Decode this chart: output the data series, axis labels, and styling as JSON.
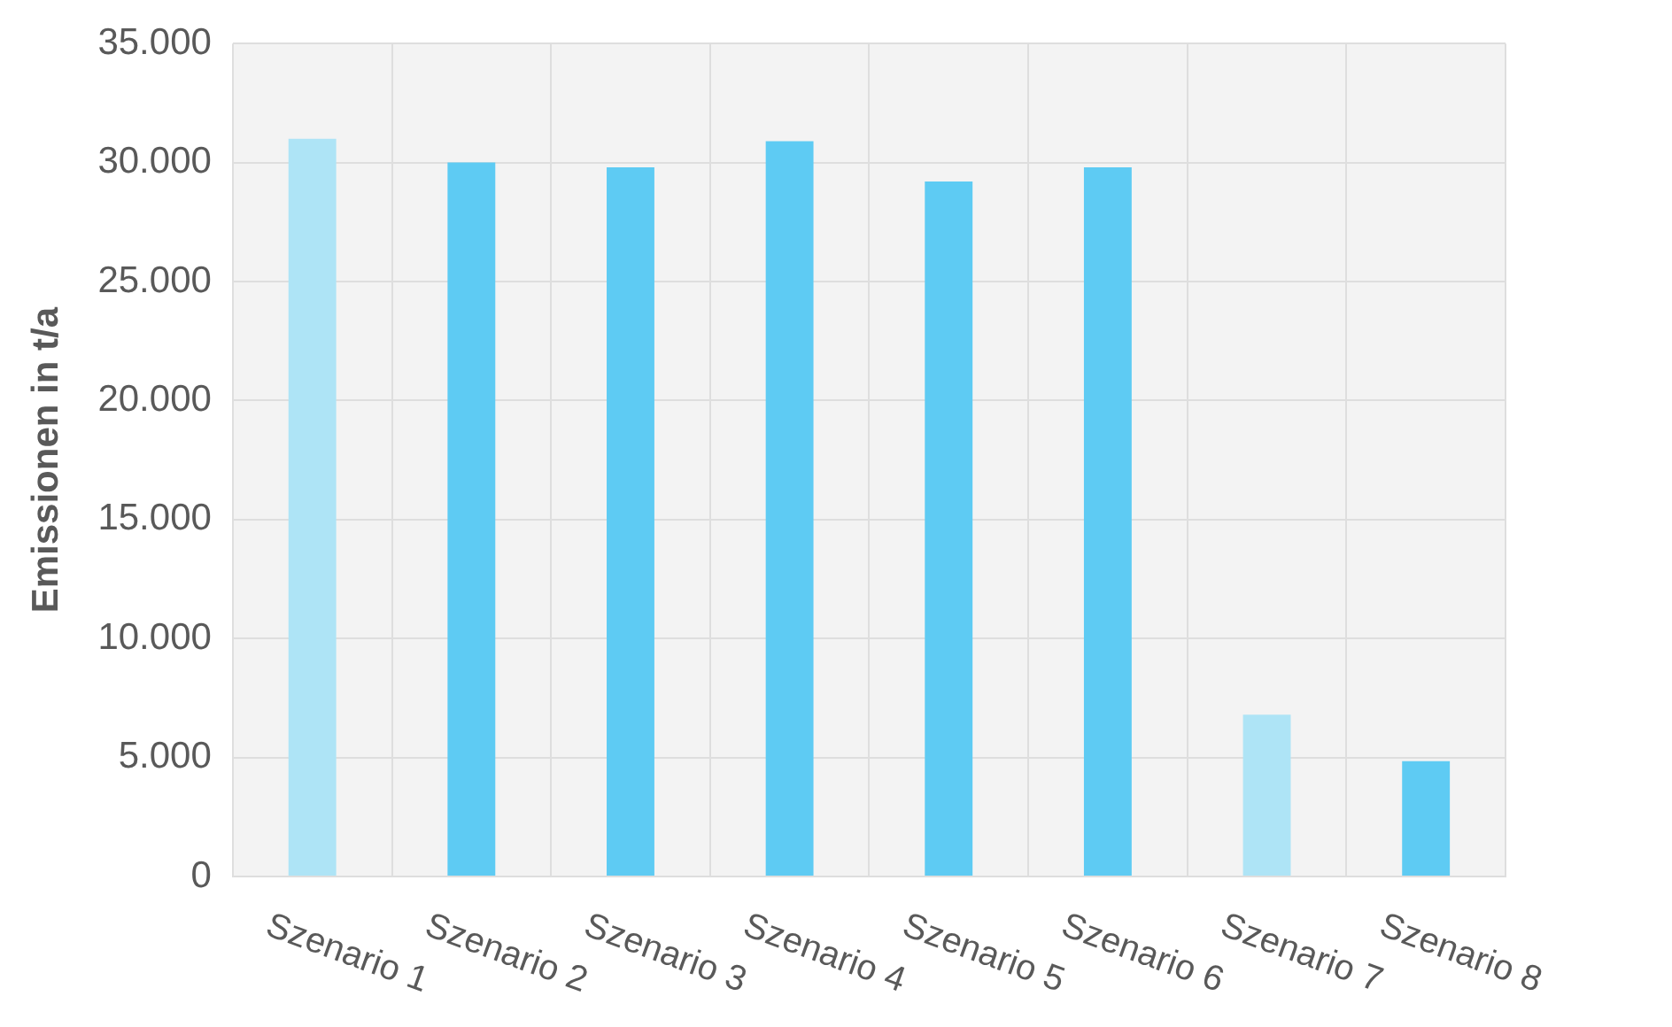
{
  "chart_data": {
    "type": "bar",
    "ylabel": "Emissionen in t/a",
    "categories": [
      "Szenario 1",
      "Szenario 2",
      "Szenario 3",
      "Szenario 4",
      "Szenario 5",
      "Szenario 6",
      "Szenario 7",
      "Szenario 8"
    ],
    "values": [
      31000,
      30000,
      29800,
      30900,
      29200,
      29800,
      6800,
      4850
    ],
    "colors": [
      "#aee4f6",
      "#5ecbf3",
      "#5ecbf3",
      "#5ecbf3",
      "#5ecbf3",
      "#5ecbf3",
      "#aee4f6",
      "#5ecbf3"
    ],
    "ylim": [
      0,
      35000
    ],
    "yticks": [
      0,
      {
        "value": 5000,
        "label": "5.000"
      },
      {
        "value": 10000,
        "label": "10.000"
      },
      {
        "value": 15000,
        "label": "15.000"
      },
      {
        "value": 20000,
        "label": "20.000"
      },
      {
        "value": 25000,
        "label": "25.000"
      },
      {
        "value": 30000,
        "label": "30.000"
      },
      {
        "value": 35000,
        "label": "35.000"
      }
    ],
    "grid": true,
    "legend": false
  }
}
